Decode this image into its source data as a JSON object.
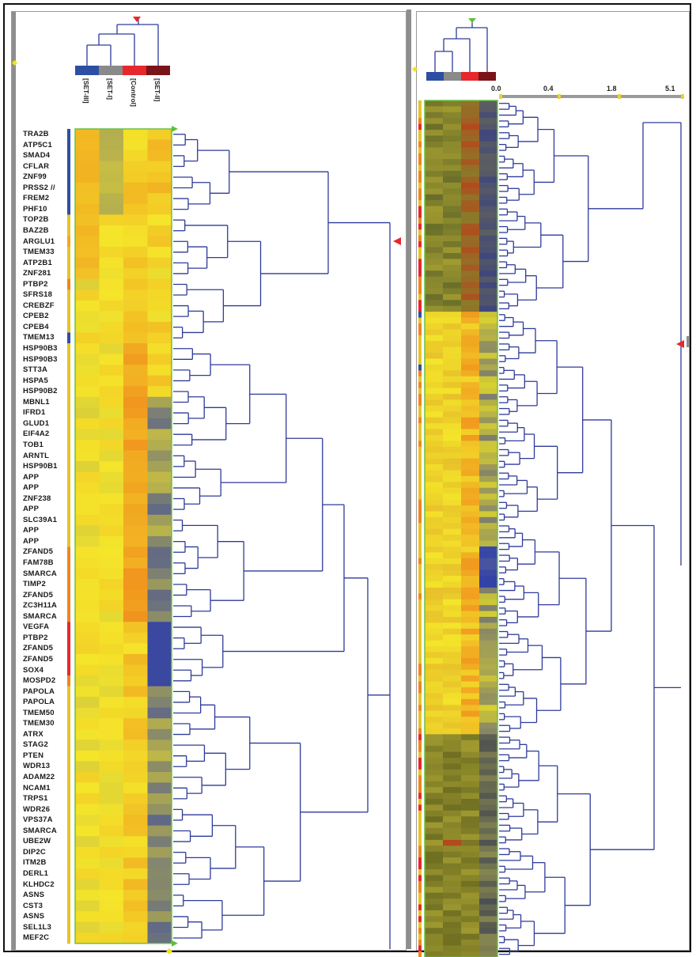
{
  "left_panel": {
    "column_labels": [
      "[SET-III]",
      "[SET-I]",
      "[Control]",
      "[SET-II]"
    ],
    "legend_colors": [
      "#2d4fa3",
      "#8a8a8a",
      "#e8272c",
      "#7a1418"
    ],
    "genes": [
      "TRA2B",
      "ATP5C1",
      "SMAD4",
      "CFLAR",
      "ZNF99",
      "PRSS2 //",
      "FREM2",
      "PHF10",
      "TOP2B",
      "BAZ2B",
      "ARGLU1",
      "TMEM33",
      "ATP2B1",
      "ZNF281",
      "PTBP2",
      "SFRS18",
      "CREBZF",
      "CPEB2",
      "CPEB4",
      "TMEM13",
      "HSP90B3",
      "HSP90B3",
      "STT3A",
      "HSPA5",
      "HSP90B2",
      "MBNL1",
      "IFRD1",
      "GLUD1",
      "EIF4A2",
      "TOB1",
      "ARNTL",
      "HSP90B1",
      "APP",
      "APP",
      "ZNF238",
      "APP",
      "SLC39A1",
      "APP",
      "APP",
      "ZFAND5",
      "FAM78B",
      "SMARCA",
      "TIMP2",
      "ZFAND5",
      "ZC3H11A",
      "SMARCA",
      "VEGFA",
      "PTBP2",
      "ZFAND5",
      "ZFAND5",
      "SOX4",
      "MOSPD2",
      "PAPOLA",
      "PAPOLA",
      "TMEM50",
      "TMEM30",
      "ATRX",
      "STAG2",
      "PTEN",
      "WDR13",
      "ADAM22",
      "NCAM1",
      "TRPS1",
      "WDR26",
      "VPS37A",
      "SMARCA",
      "UBE2W",
      "DIP2C",
      "ITM2B",
      "DERL1",
      "KLHDC2",
      "ASNS",
      "CST3",
      "ASNS",
      "SEL1L3",
      "MEF2C"
    ],
    "side_bar_colors": [
      "#2d4fa3",
      "#2d4fa3",
      "#2d4fa3",
      "#2d4fa3",
      "#2d4fa3",
      "#2d4fa3",
      "#2d4fa3",
      "#2d4fa3",
      "#e8c22a",
      "#e8c22a",
      "#f5a623",
      "#e8c22a",
      "#e8c22a",
      "#e8c22a",
      "#f0851e",
      "#e8c22a",
      "#e8c22a",
      "#e8c22a",
      "#e8c22a",
      "#2d4fa3",
      "#e8c22a",
      "#e8c22a",
      "#e8c22a",
      "#e8c22a",
      "#e8c22a",
      "#e8c22a",
      "#e8c22a",
      "#e8c22a",
      "#e8c22a",
      "#e8c22a",
      "#e8c22a",
      "#e8c22a",
      "#e8c22a",
      "#e8c22a",
      "#e8c22a",
      "#e8c22a",
      "#e8c22a",
      "#e8c22a",
      "#e8c22a",
      "#f0851e",
      "#f0851e",
      "#f0851e",
      "#f0851e",
      "#f0851e",
      "#f0851e",
      "#f0851e",
      "#e8272c",
      "#e8272c",
      "#e8272c",
      "#e8272c",
      "#e8272c",
      "#f0851e",
      "#e8c22a",
      "#e8c22a",
      "#e8c22a",
      "#e8c22a",
      "#e8c22a",
      "#e8c22a",
      "#e8c22a",
      "#e8c22a",
      "#e8c22a",
      "#e8c22a",
      "#e8c22a",
      "#e8c22a",
      "#e8c22a",
      "#e8c22a",
      "#e8c22a",
      "#e8c22a",
      "#e8c22a",
      "#e8c22a",
      "#e8c22a",
      "#e8c22a",
      "#e8c22a",
      "#e8c22a",
      "#e8c22a",
      "#e8c22a"
    ]
  },
  "right_panel": {
    "legend_colors": [
      "#2d4fa3",
      "#8a8a8a",
      "#e8272c",
      "#7a1418"
    ],
    "scale_ticks": [
      "0.0",
      "0.4",
      "1.8",
      "5.1"
    ]
  },
  "colors": {
    "dendrogram_line": "#2e3a9a",
    "heatmap_border": "#6cc04a",
    "marker_red": "#e8272c",
    "marker_green": "#5cc23a",
    "marker_yellow": "#f2e21e",
    "scrollbar": "#8e8e8e"
  }
}
